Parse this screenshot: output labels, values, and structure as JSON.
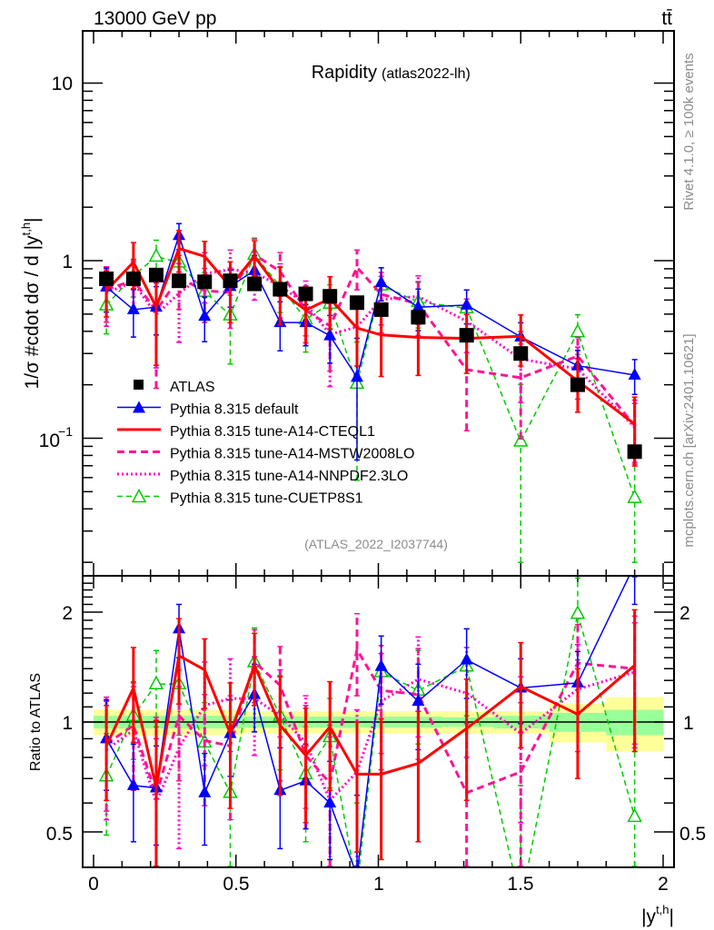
{
  "header": {
    "energy_label": "13000 GeV pp",
    "process_label": "tt̄",
    "title": "Rapidity",
    "subtitle": "(atlas2022-lh)",
    "analysis_id": "(ATLAS_2022_I2037744)",
    "side_label_top": "Rivet 4.1.0, ≥ 100k events",
    "side_label_bottom": "mcplots.cern.ch [arXiv:2401.10621]"
  },
  "chart_data": [
    {
      "type": "line",
      "panel": "main",
      "title": "Rapidity (atlas2022-lh)",
      "xlabel": "|y^{t,h}|",
      "ylabel": "1/σ #cdot dσ / d |y^{t,h}|",
      "yscale": "log",
      "xlim": [
        -0.04,
        2.04
      ],
      "ylim": [
        0.02,
        20
      ],
      "x_ticks": [
        "0",
        "0.5",
        "1",
        "1.5",
        "2"
      ],
      "y_ticks": [
        "10^{-1}",
        "1",
        "10"
      ],
      "legend_position": "bottom-left",
      "x": [
        0.045,
        0.14,
        0.22,
        0.3,
        0.39,
        0.48,
        0.565,
        0.655,
        0.745,
        0.83,
        0.925,
        1.01,
        1.14,
        1.31,
        1.5,
        1.7,
        1.9
      ],
      "series": [
        {
          "name": "ATLAS",
          "style": "data",
          "color": "#000000",
          "values": [
            0.79,
            0.79,
            0.83,
            0.77,
            0.76,
            0.77,
            0.74,
            0.69,
            0.65,
            0.63,
            0.58,
            0.53,
            0.48,
            0.38,
            0.3,
            0.2,
            0.084
          ]
        },
        {
          "name": "Pythia 8.315 default",
          "style": "solid-triangle",
          "color": "#0000ff",
          "ratio": [
            0.9,
            0.67,
            0.66,
            1.8,
            0.64,
            0.93,
            1.19,
            0.65,
            0.69,
            0.6,
            0.38,
            1.42,
            1.14,
            1.48,
            1.24,
            1.28,
            2.7
          ],
          "ratio_err": [
            0.25,
            0.2,
            0.2,
            0.3,
            0.18,
            0.22,
            0.25,
            0.2,
            0.18,
            0.18,
            0.25,
            0.3,
            0.3,
            0.32,
            0.25,
            0.28,
            0.6
          ]
        },
        {
          "name": "Pythia 8.315 tune-A14-CTEQL1",
          "style": "solid-thick",
          "color": "#ff0000",
          "ratio": [
            0.86,
            1.24,
            0.66,
            1.52,
            1.39,
            0.93,
            1.43,
            0.98,
            0.81,
            0.97,
            0.72,
            0.72,
            0.77,
            0.96,
            1.25,
            1.05,
            1.43
          ],
          "ratio_err": [
            0.25,
            0.36,
            0.35,
            0.4,
            0.3,
            0.35,
            0.32,
            0.35,
            0.28,
            0.32,
            0.28,
            0.3,
            0.3,
            0.35,
            0.4,
            0.35,
            0.6
          ]
        },
        {
          "name": "Pythia 8.315 tune-A14-MSTW2008LO",
          "style": "dashed",
          "color": "#ff1493",
          "ratio": [
            0.87,
            0.98,
            0.63,
            1.04,
            0.89,
            0.86,
            1.46,
            1.26,
            0.81,
            0.68,
            1.58,
            1.22,
            1.19,
            0.64,
            0.73,
            1.45,
            1.4
          ],
          "ratio_err": [
            0.3,
            0.3,
            0.4,
            0.35,
            0.3,
            0.32,
            0.33,
            0.35,
            0.3,
            0.3,
            0.4,
            0.4,
            0.4,
            0.35,
            0.4,
            0.4,
            0.55
          ]
        },
        {
          "name": "Pythia 8.315 tune-A14-NNPDF2.3LO",
          "style": "dotted",
          "color": "#ff00cc",
          "ratio": [
            0.84,
            0.95,
            0.6,
            0.85,
            1.11,
            1.16,
            1.16,
            1.04,
            0.88,
            0.61,
            0.73,
            1.14,
            1.31,
            1.2,
            0.93,
            1.23,
            1.37
          ],
          "ratio_err": [
            0.3,
            0.3,
            0.3,
            0.4,
            0.35,
            0.33,
            0.35,
            0.35,
            0.3,
            0.3,
            0.35,
            0.4,
            0.4,
            0.4,
            0.4,
            0.4,
            0.5
          ]
        },
        {
          "name": "Pythia 8.315 tune-CUETP8S1",
          "style": "dashed-open-triangle",
          "color": "#00cc00",
          "ratio": [
            0.71,
            1.04,
            1.27,
            1.27,
            0.88,
            0.64,
            1.46,
            1.04,
            0.72,
            0.91,
            0.35,
            1.37,
            1.22,
            1.42,
            0.32,
            1.98,
            0.55
          ],
          "ratio_err": [
            0.22,
            0.25,
            0.3,
            0.35,
            0.25,
            0.3,
            0.35,
            0.3,
            0.25,
            0.25,
            0.25,
            0.35,
            0.35,
            0.38,
            0.35,
            0.5,
            0.45
          ]
        }
      ]
    },
    {
      "type": "line",
      "panel": "ratio",
      "ylabel": "Ratio to ATLAS",
      "xlabel": "|y^{t,h}|",
      "yscale": "log",
      "ylim": [
        0.4,
        2.5
      ],
      "y_ticks": [
        "0.5",
        "1",
        "2"
      ],
      "band_green": [
        0.04,
        0.04,
        0.04,
        0.04,
        0.04,
        0.04,
        0.035,
        0.035,
        0.035,
        0.035,
        0.035,
        0.035,
        0.035,
        0.03,
        0.04,
        0.06,
        0.08
      ],
      "band_yellow": [
        0.08,
        0.08,
        0.08,
        0.08,
        0.08,
        0.08,
        0.07,
        0.07,
        0.07,
        0.07,
        0.07,
        0.07,
        0.07,
        0.07,
        0.07,
        0.12,
        0.17
      ]
    }
  ],
  "legend": [
    {
      "label": "ATLAS"
    },
    {
      "label": "Pythia 8.315 default"
    },
    {
      "label": "Pythia 8.315 tune-A14-CTEQL1"
    },
    {
      "label": "Pythia 8.315 tune-A14-MSTW2008LO"
    },
    {
      "label": "Pythia 8.315 tune-A14-NNPDF2.3LO"
    },
    {
      "label": "Pythia 8.315 tune-CUETP8S1"
    }
  ],
  "axes": {
    "main_ylabel": "1/σ #cdot dσ / d |y",
    "main_ylabel_sup": "t,h",
    "ratio_ylabel": "Ratio to ATLAS",
    "xlabel_base": "|y",
    "xlabel_sup": "t,h",
    "x_tick_labels": [
      "0",
      "0.5",
      "1",
      "1.5",
      "2"
    ],
    "main_y_tick_labels": [
      "10",
      "1",
      "10",
      "−1"
    ],
    "ratio_y_tick_labels": [
      "2",
      "1",
      "0.5"
    ]
  }
}
